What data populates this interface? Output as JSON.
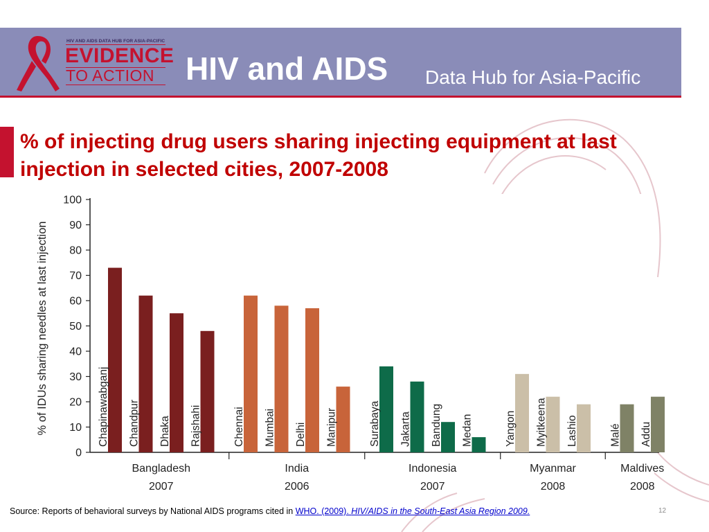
{
  "header": {
    "logo_small": "HIV AND AIDS DATA HUB FOR ASIA-PACIFIC",
    "logo_evidence": "EVIDENCE",
    "logo_action": "TO ACTION",
    "title": "HIV and AIDS",
    "subtitle": "Data Hub for Asia-Pacific",
    "band_color": "#8a8cb8",
    "accent_color": "#c4122f"
  },
  "slide": {
    "title": "% of injecting drug users sharing injecting equipment at last injection in selected cities, 2007-2008",
    "title_color": "#c00000"
  },
  "chart_data": {
    "type": "bar",
    "ylabel": "% of IDUs sharing needles at last injection",
    "ylim": [
      0,
      100
    ],
    "yticks": [
      0,
      10,
      20,
      30,
      40,
      50,
      60,
      70,
      80,
      90,
      100
    ],
    "grid": false,
    "groups": [
      {
        "country": "Bangladesh",
        "year": "2007",
        "color": "#7a1f1f",
        "cities": [
          {
            "name": "Chapinawabganj",
            "value": 73
          },
          {
            "name": "Chandpur",
            "value": 62
          },
          {
            "name": "Dhaka",
            "value": 55
          },
          {
            "name": "Rajshahi",
            "value": 48
          }
        ]
      },
      {
        "country": "India",
        "year": "2006",
        "color": "#c8643a",
        "cities": [
          {
            "name": "Chennai",
            "value": 62
          },
          {
            "name": "Mumbai",
            "value": 58
          },
          {
            "name": "Delhi",
            "value": 57
          },
          {
            "name": "Manipur",
            "value": 26
          }
        ]
      },
      {
        "country": "Indonesia",
        "year": "2007",
        "color": "#0e6b49",
        "cities": [
          {
            "name": "Surabaya",
            "value": 34
          },
          {
            "name": "Jakarta",
            "value": 28
          },
          {
            "name": "Bandung",
            "value": 12
          },
          {
            "name": "Medan",
            "value": 6
          }
        ]
      },
      {
        "country": "Myanmar",
        "year": "2008",
        "color": "#cbbfa8",
        "cities": [
          {
            "name": "Yangon",
            "value": 31
          },
          {
            "name": "Myitkeena",
            "value": 22
          },
          {
            "name": "Lashio",
            "value": 19
          }
        ]
      },
      {
        "country": "Maldives",
        "year": "2008",
        "color": "#7f8266",
        "cities": [
          {
            "name": "Malé",
            "value": 19
          },
          {
            "name": "Addu",
            "value": 22
          }
        ]
      }
    ]
  },
  "footer": {
    "source_prefix": "Source: Reports of behavioral surveys by National AIDS programs cited in ",
    "source_link_a": "WHO. (2009). ",
    "source_link_b": "HIV/AIDS in the South-East Asia Region 2009.",
    "page_number": "12"
  }
}
